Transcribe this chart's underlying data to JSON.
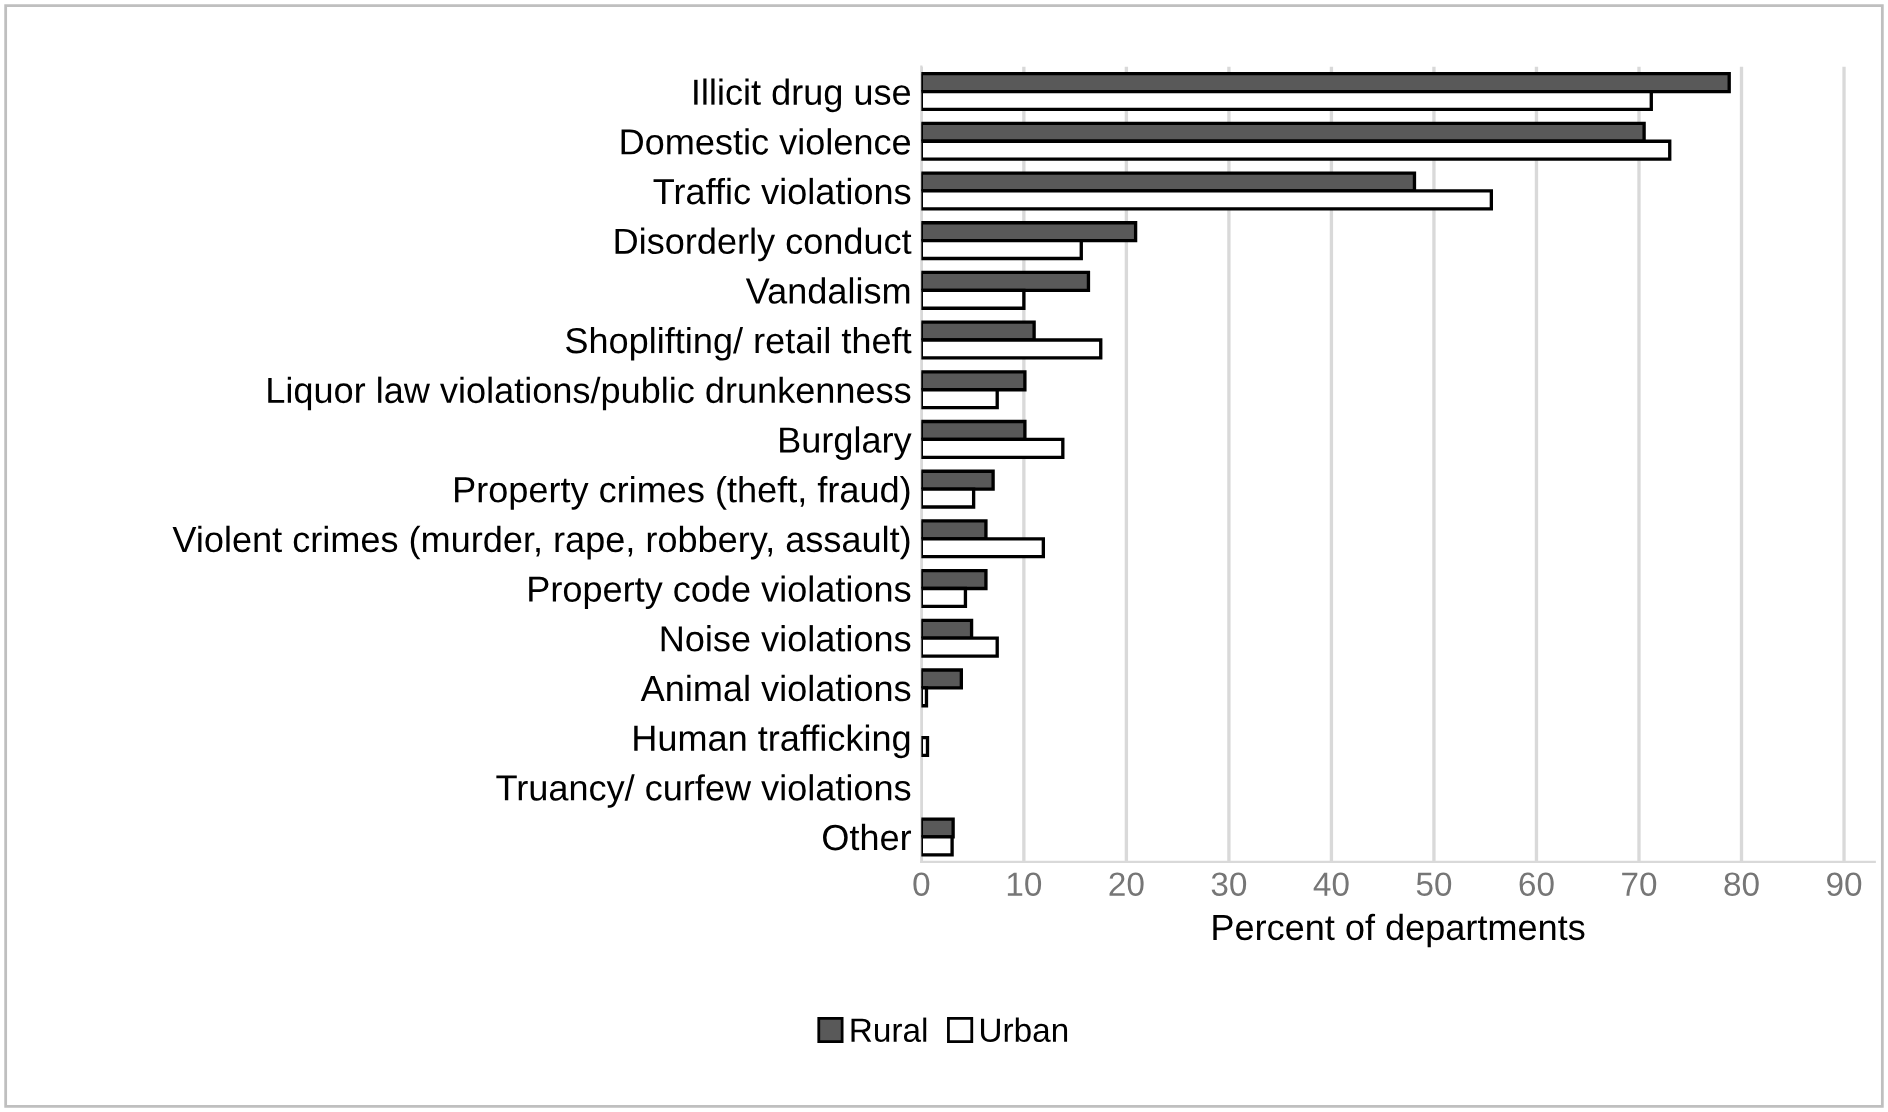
{
  "chart_data": {
    "type": "bar",
    "orientation": "horizontal",
    "xlabel": "Percent of departments",
    "categories": [
      "Illicit drug use",
      "Domestic violence",
      "Traffic violations",
      "Disorderly conduct",
      "Vandalism",
      "Shoplifting/ retail theft",
      "Liquor law violations/public drunkenness",
      "Burglary",
      "Property crimes (theft, fraud)",
      "Violent crimes (murder, rape, robbery, assault)",
      "Property code violations",
      "Noise violations",
      "Animal violations",
      "Human trafficking",
      "Truancy/ curfew violations",
      "Other"
    ],
    "series": [
      {
        "name": "Rural",
        "color": "#595959",
        "values": [
          78.8,
          70.5,
          48.1,
          20.9,
          16.3,
          11,
          10.1,
          10.1,
          7,
          6.3,
          6.3,
          4.9,
          3.9,
          0,
          0,
          3.1
        ]
      },
      {
        "name": "Urban",
        "color": "#ffffff",
        "values": [
          71.2,
          73,
          55.6,
          15.6,
          10,
          17.5,
          7.4,
          13.8,
          5.1,
          11.9,
          4.3,
          7.4,
          0.5,
          0.6,
          0,
          3
        ]
      }
    ],
    "xlim": [
      0,
      93
    ],
    "xticks": [
      0,
      10,
      20,
      30,
      40,
      50,
      60,
      70,
      80,
      90
    ],
    "grid": "x",
    "legend": "bottom"
  }
}
